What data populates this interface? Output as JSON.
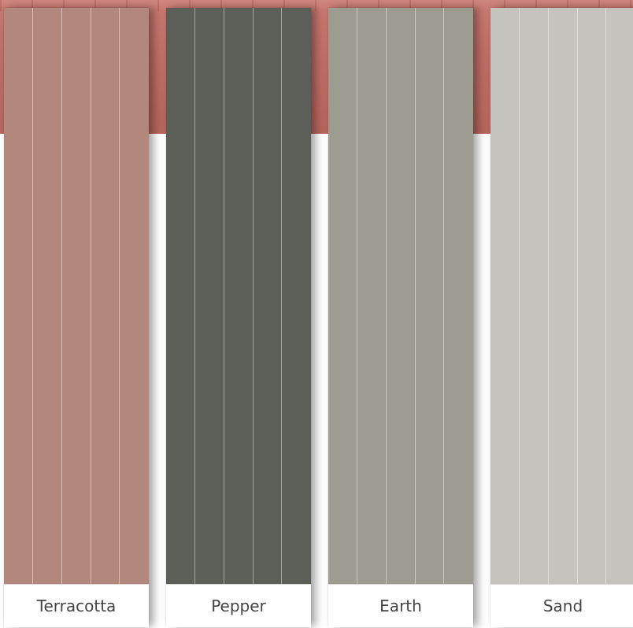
{
  "swatches": [
    {
      "name": "Terracotta",
      "color": "#b1887b"
    },
    {
      "name": "Pepper",
      "color": "#5c5e58"
    },
    {
      "name": "Earth",
      "color": "#9d9c90"
    },
    {
      "name": "Sand",
      "color": "#c4c3be"
    }
  ],
  "background": {
    "roof_color": "#c06f67"
  }
}
